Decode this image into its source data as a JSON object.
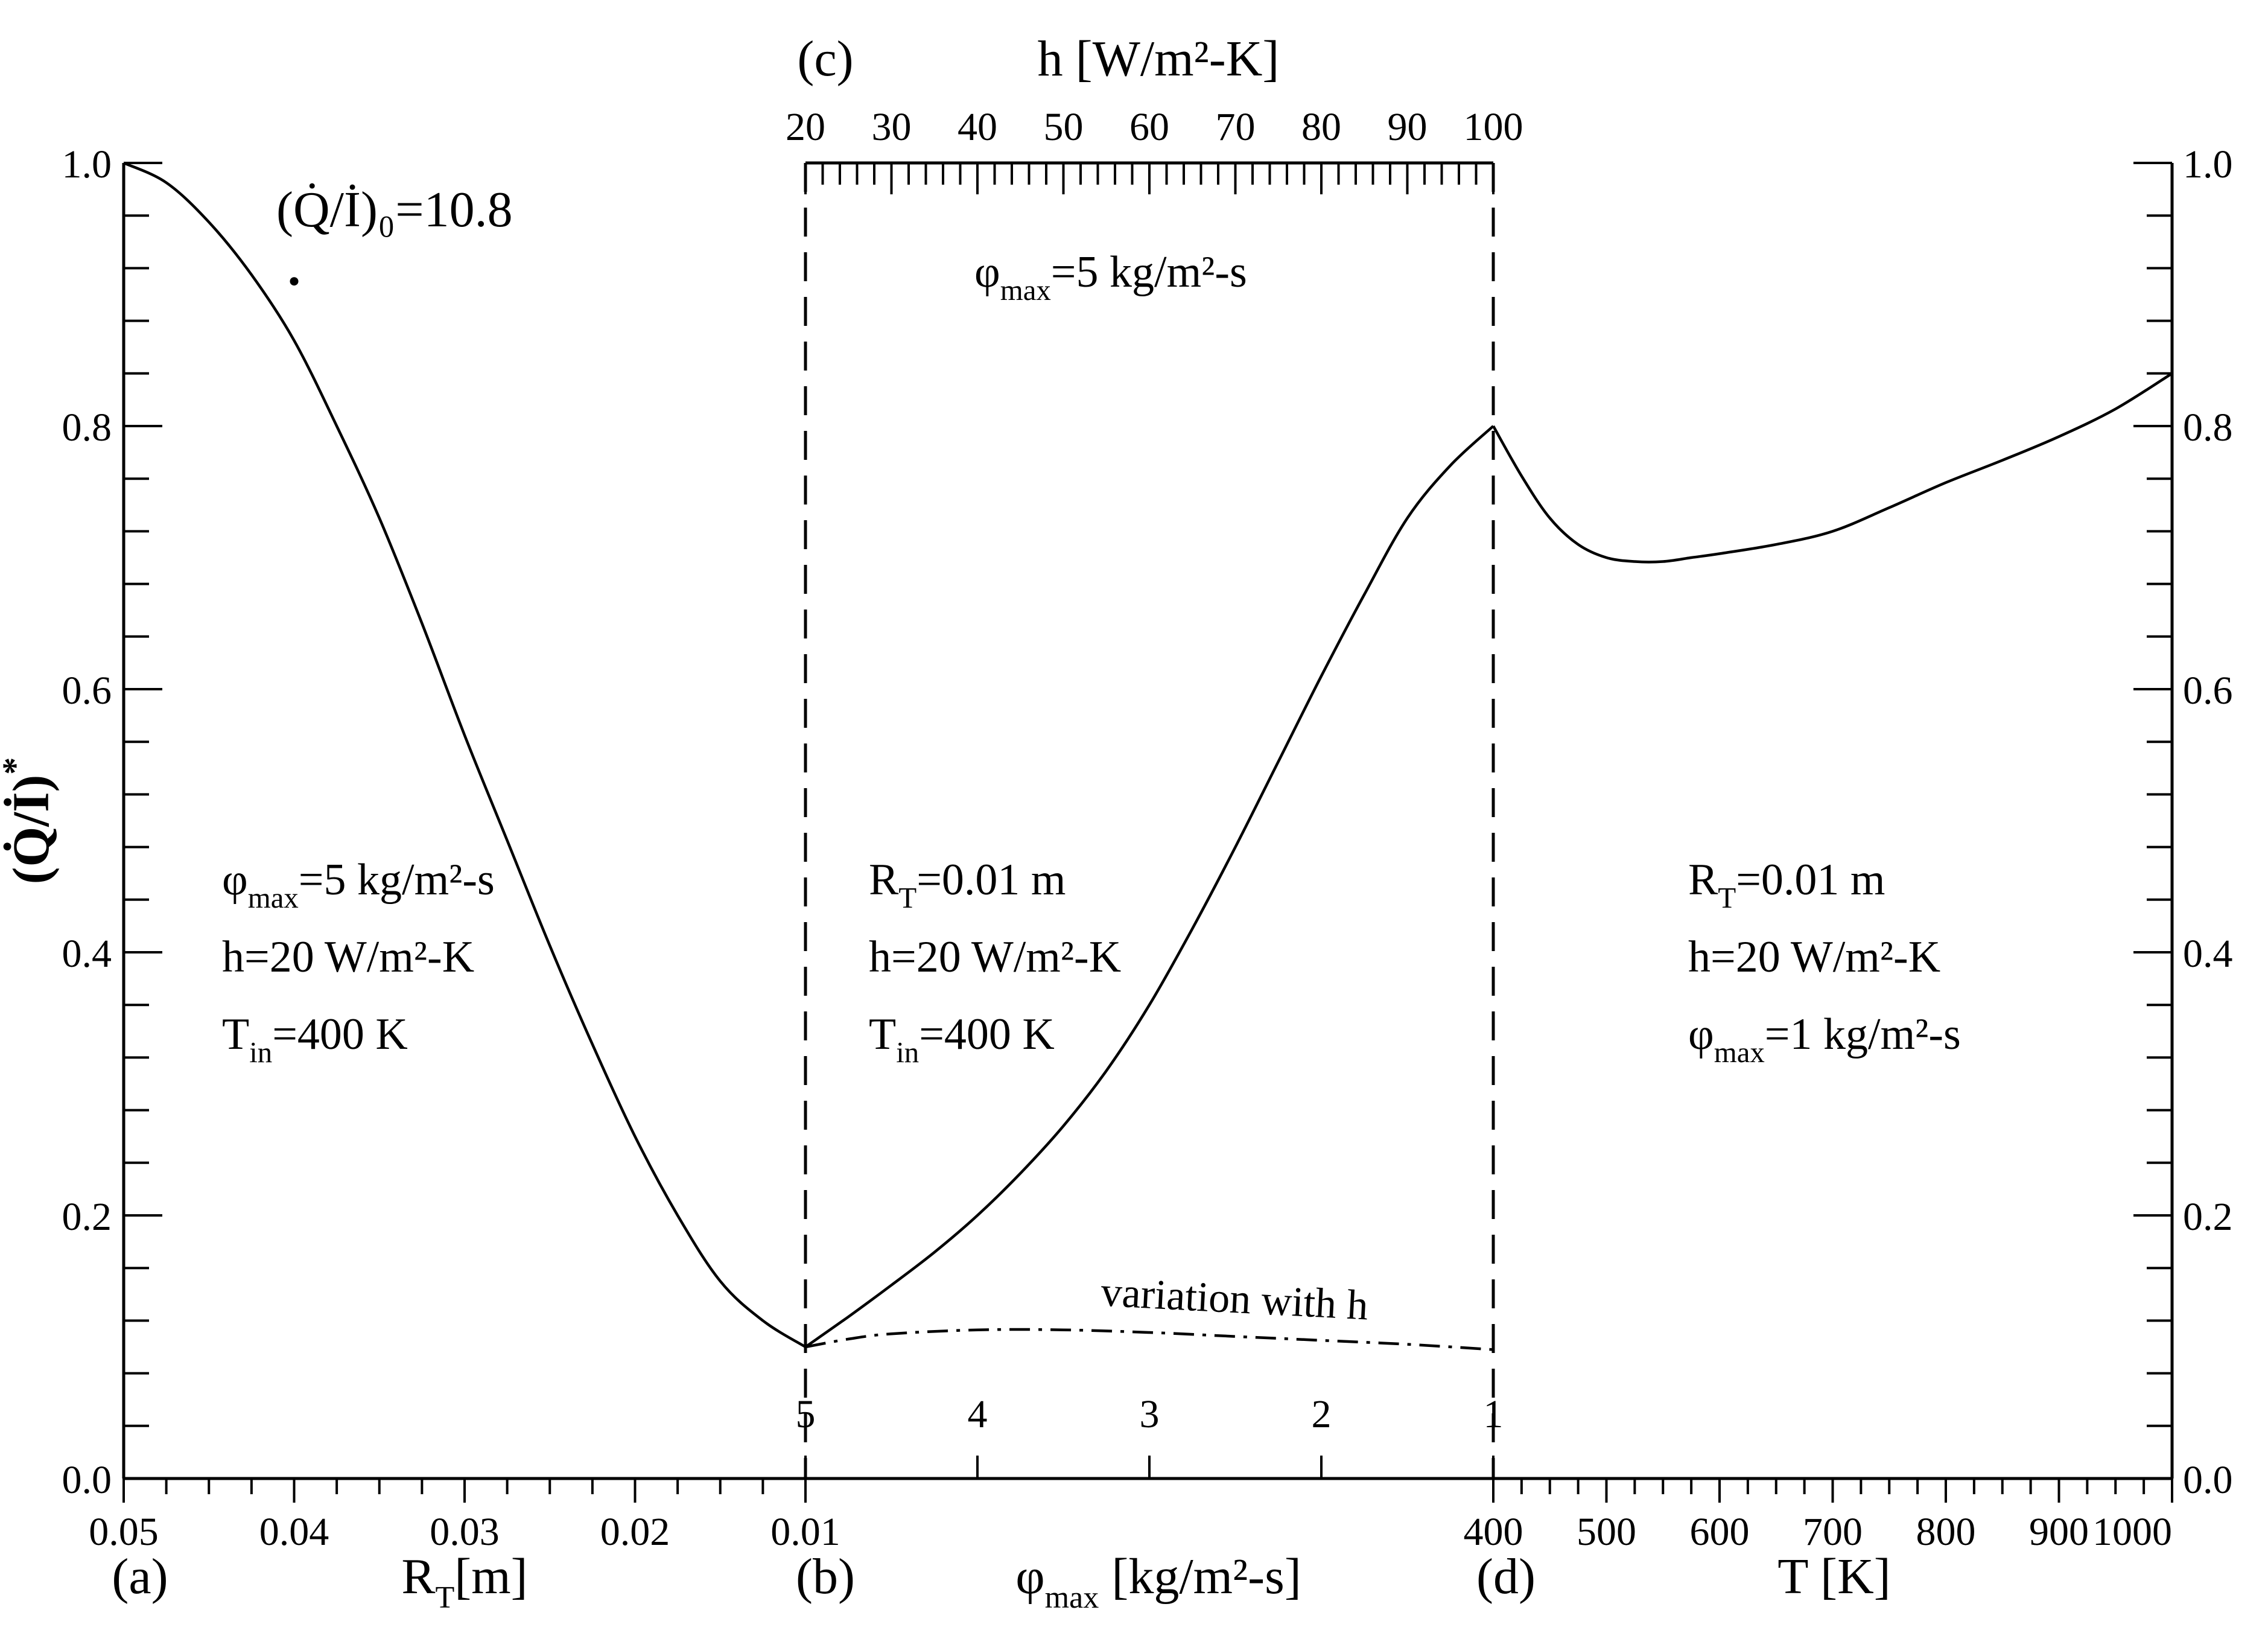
{
  "chart_data": {
    "type": "line",
    "y_axis": {
      "label_main": "(Q̇/İ)",
      "label_sup": "*",
      "range": [
        0.0,
        1.0
      ],
      "ticks": [
        {
          "v": 0.0,
          "label": "0.0"
        },
        {
          "v": 0.2,
          "label": "0.2"
        },
        {
          "v": 0.4,
          "label": "0.4"
        },
        {
          "v": 0.6,
          "label": "0.6"
        },
        {
          "v": 0.8,
          "label": "0.8"
        },
        {
          "v": 1.0,
          "label": "1.0"
        }
      ],
      "minor_step": 0.04
    },
    "panels": [
      {
        "id": "a",
        "tag": "(a)",
        "xlabel_main": "R",
        "xlabel_sub": "T",
        "xlabel_rest": "[m]",
        "x_range": [
          0.05,
          0.01
        ],
        "x_ticks": [
          {
            "v": 0.05,
            "label": "0.05"
          },
          {
            "v": 0.04,
            "label": "0.04"
          },
          {
            "v": 0.03,
            "label": "0.03"
          },
          {
            "v": 0.02,
            "label": "0.02"
          },
          {
            "v": 0.01,
            "label": "0.01"
          }
        ],
        "minor_step": 0.0025,
        "series": [
          {
            "style": "solid",
            "x": [
              0.05,
              0.0475,
              0.045,
              0.0425,
              0.04,
              0.0375,
              0.035,
              0.0325,
              0.03,
              0.0275,
              0.025,
              0.0225,
              0.02,
              0.0175,
              0.015,
              0.0125,
              0.01
            ],
            "y": [
              1.0,
              0.985,
              0.955,
              0.915,
              0.865,
              0.8,
              0.73,
              0.65,
              0.565,
              0.485,
              0.405,
              0.33,
              0.26,
              0.2,
              0.15,
              0.12,
              0.1
            ]
          }
        ],
        "annotations": [
          {
            "text": "(Q̇/İ)₀=10.8",
            "x": 0.04,
            "y": 0.91
          }
        ],
        "params": [
          {
            "main": "φ",
            "sub": "max",
            "rest": "=5 kg/m²-s"
          },
          {
            "main": "h=20 W/m²-K",
            "sub": "",
            "rest": ""
          },
          {
            "main": "T",
            "sub": "in",
            "rest": "=400 K"
          }
        ]
      },
      {
        "id": "b",
        "tag": "(b)",
        "xlabel_main": "φ",
        "xlabel_sub": "max",
        "xlabel_rest": "[kg/m²-s]",
        "x_range": [
          5,
          1
        ],
        "x_ticks": [
          {
            "v": 5,
            "label": "5"
          },
          {
            "v": 4,
            "label": "4"
          },
          {
            "v": 3,
            "label": "3"
          },
          {
            "v": 2,
            "label": "2"
          },
          {
            "v": 1,
            "label": "1"
          }
        ],
        "series": [
          {
            "style": "solid",
            "x": [
              5,
              4.75,
              4.5,
              4.25,
              4,
              3.75,
              3.5,
              3.25,
              3,
              2.75,
              2.5,
              2.25,
              2,
              1.75,
              1.5,
              1.25,
              1
            ],
            "y": [
              0.1,
              0.123,
              0.147,
              0.172,
              0.2,
              0.232,
              0.268,
              0.31,
              0.36,
              0.418,
              0.48,
              0.545,
              0.61,
              0.672,
              0.73,
              0.77,
              0.8
            ]
          }
        ],
        "params": [
          {
            "main": "R",
            "sub": "T",
            "rest": "=0.01 m"
          },
          {
            "main": "h=20 W/m²-K",
            "sub": "",
            "rest": ""
          },
          {
            "main": "T",
            "sub": "in",
            "rest": "=400 K"
          }
        ]
      },
      {
        "id": "c",
        "tag": "(c)",
        "xlabel_main": "h",
        "xlabel_rest": "[W/m²-K]",
        "x_range": [
          20,
          100
        ],
        "x_ticks": [
          {
            "v": 20,
            "label": "20"
          },
          {
            "v": 30,
            "label": "30"
          },
          {
            "v": 40,
            "label": "40"
          },
          {
            "v": 50,
            "label": "50"
          },
          {
            "v": 60,
            "label": "60"
          },
          {
            "v": 70,
            "label": "70"
          },
          {
            "v": 80,
            "label": "80"
          },
          {
            "v": 90,
            "label": "90"
          },
          {
            "v": 100,
            "label": "100"
          }
        ],
        "minor_step": 2,
        "series": [
          {
            "name": "variation with h",
            "style": "dashdot",
            "x": [
              20,
              25,
              30,
              40,
              50,
              60,
              70,
              80,
              90,
              100
            ],
            "y": [
              0.1,
              0.106,
              0.11,
              0.113,
              0.113,
              0.111,
              0.108,
              0.105,
              0.102,
              0.098
            ]
          }
        ],
        "params": [
          {
            "main": "φ",
            "sub": "max",
            "rest": "=5 kg/m²-s"
          }
        ]
      },
      {
        "id": "d",
        "tag": "(d)",
        "xlabel_main": "T",
        "xlabel_rest": "[K]",
        "x_range": [
          400,
          1000
        ],
        "x_ticks": [
          {
            "v": 400,
            "label": "400"
          },
          {
            "v": 500,
            "label": "500"
          },
          {
            "v": 600,
            "label": "600"
          },
          {
            "v": 700,
            "label": "700"
          },
          {
            "v": 800,
            "label": "800"
          },
          {
            "v": 900,
            "label": "900"
          },
          {
            "v": 1000,
            "label": "1000"
          }
        ],
        "minor_step": 25,
        "series": [
          {
            "style": "solid",
            "x": [
              400,
              425,
              450,
              475,
              500,
              525,
              550,
              575,
              600,
              650,
              700,
              750,
              800,
              850,
              900,
              950,
              1000
            ],
            "y": [
              0.8,
              0.762,
              0.73,
              0.71,
              0.7,
              0.697,
              0.697,
              0.7,
              0.703,
              0.71,
              0.72,
              0.738,
              0.757,
              0.774,
              0.792,
              0.813,
              0.84
            ]
          }
        ],
        "params": [
          {
            "main": "R",
            "sub": "T",
            "rest": "=0.01 m"
          },
          {
            "main": "h=20 W/m²-K",
            "sub": "",
            "rest": ""
          },
          {
            "main": "φ",
            "sub": "max",
            "rest": "=1 kg/m²-s"
          }
        ]
      }
    ]
  }
}
